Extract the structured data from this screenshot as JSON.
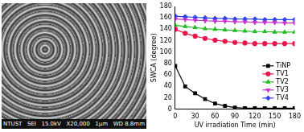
{
  "micrograph": {
    "labels": [
      "NTUST",
      "SEI",
      "15.0kV",
      "X20,000",
      "1μm",
      "WD 8.8mm"
    ]
  },
  "chart_data": {
    "type": "line",
    "x_label": "UV irradiation Time (min)",
    "y_label": "SWCA (degree)",
    "x": [
      0,
      15,
      30,
      45,
      60,
      75,
      90,
      105,
      120,
      135,
      150,
      165,
      180
    ],
    "series": [
      {
        "name": "TiNP",
        "color": "#000000",
        "marker": "square",
        "values": [
          76,
          40,
          28,
          18,
          10,
          6,
          3,
          2,
          2,
          2,
          2,
          2,
          2
        ]
      },
      {
        "name": "TV1",
        "color": "#e8174a",
        "marker": "circle",
        "values": [
          140,
          133,
          128,
          124,
          121,
          119,
          117,
          116,
          115,
          115,
          115,
          115,
          115
        ]
      },
      {
        "name": "TV2",
        "color": "#22bb22",
        "marker": "triangle",
        "values": [
          147,
          145,
          143,
          141,
          140,
          139,
          138,
          137,
          136,
          136,
          135,
          135,
          135
        ]
      },
      {
        "name": "TV3",
        "color": "#cc33cc",
        "marker": "triangle_down",
        "values": [
          158,
          157,
          156,
          155,
          154,
          154,
          153,
          153,
          152,
          152,
          152,
          151,
          151
        ]
      },
      {
        "name": "TV4",
        "color": "#3344ee",
        "marker": "diamond",
        "values": [
          163,
          162,
          161,
          160,
          159,
          159,
          158,
          158,
          158,
          157,
          157,
          157,
          157
        ]
      }
    ],
    "xlim": [
      0,
      180
    ],
    "xticks": [
      0,
      30,
      60,
      90,
      120,
      150,
      180
    ],
    "ylim": [
      0,
      180
    ],
    "yticks": [
      0,
      20,
      40,
      60,
      80,
      100,
      120,
      140,
      160,
      180
    ],
    "legend": "right",
    "grid": false
  }
}
